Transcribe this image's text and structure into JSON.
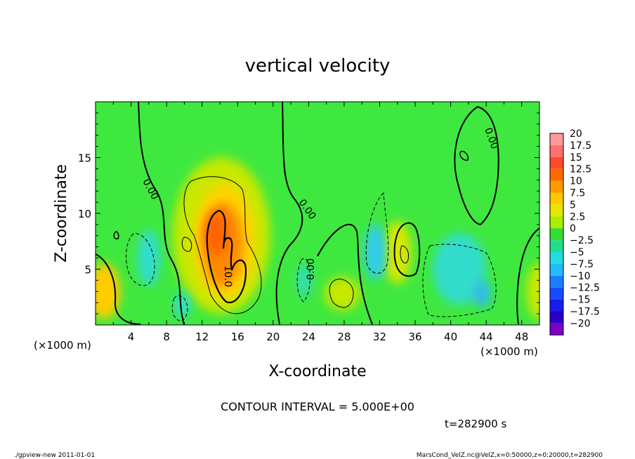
{
  "chart_data": {
    "type": "heatmap",
    "title": "vertical velocity",
    "xlabel": "X-coordinate",
    "ylabel": "Z-coordinate",
    "x_unit": "(×1000 m)",
    "z_unit": "(×1000 m)",
    "xlim": [
      0,
      50
    ],
    "ylim": [
      0,
      20
    ],
    "x_ticks": [
      "4",
      "8",
      "12",
      "16",
      "20",
      "24",
      "28",
      "32",
      "36",
      "40",
      "44",
      "48"
    ],
    "y_ticks": [
      "5",
      "10",
      "15"
    ],
    "contour_labels": [
      "0.00",
      "0.00",
      "0.00",
      "10.0",
      "0.00"
    ],
    "colorbar": {
      "labels": [
        "20",
        "17.5",
        "15",
        "12.5",
        "10",
        "7.5",
        "5",
        "2.5",
        "0",
        "-2.5",
        "-5",
        "-7.5",
        "-10",
        "-12.5",
        "-15",
        "-17.5",
        "-20"
      ],
      "colors": [
        "#ff9a9a",
        "#ff7070",
        "#ff4a2a",
        "#ff6a00",
        "#ff9a00",
        "#ffc800",
        "#e6e600",
        "#aaee00",
        "#33dd33",
        "#22dd88",
        "#22dddd",
        "#22bbff",
        "#1a7fff",
        "#1a4aff",
        "#1a1aee",
        "#2a00c8",
        "#7a00c8"
      ]
    },
    "blobs": [
      {
        "x": 14.2,
        "z": 8.0,
        "rx": 5.5,
        "rz": 7.0,
        "value": 6,
        "fill": "#c8e800"
      },
      {
        "x": 14.5,
        "z": 7.5,
        "rx": 3.5,
        "rz": 5.2,
        "value": 9,
        "fill": "#ffd400"
      },
      {
        "x": 14.3,
        "z": 7.2,
        "rx": 2.3,
        "rz": 3.8,
        "value": 12,
        "fill": "#ff8a00"
      },
      {
        "x": 13.6,
        "z": 8.2,
        "rx": 1.3,
        "rz": 2.0,
        "value": 14,
        "fill": "#ff6400"
      },
      {
        "x": 1.0,
        "z": 3.0,
        "rx": 1.8,
        "rz": 2.5,
        "value": 7,
        "fill": "#ffcc00"
      },
      {
        "x": 34.0,
        "z": 6.5,
        "rx": 1.6,
        "rz": 2.8,
        "value": 6,
        "fill": "#d8e800"
      },
      {
        "x": 27.8,
        "z": 2.8,
        "rx": 2.0,
        "rz": 1.5,
        "value": 4,
        "fill": "#c8e800"
      },
      {
        "x": 50.0,
        "z": 3.0,
        "rx": 1.5,
        "rz": 2.5,
        "value": 4,
        "fill": "#c8e800"
      },
      {
        "x": 31.5,
        "z": 6.5,
        "rx": 1.2,
        "rz": 2.5,
        "value": -6,
        "fill": "#33ccee"
      },
      {
        "x": 6.0,
        "z": 6.0,
        "rx": 1.3,
        "rz": 2.5,
        "value": -4,
        "fill": "#33ddcc"
      },
      {
        "x": 41.0,
        "z": 5.0,
        "rx": 3.0,
        "rz": 3.2,
        "value": -4,
        "fill": "#33ddcc"
      },
      {
        "x": 43.5,
        "z": 2.8,
        "rx": 1.0,
        "rz": 1.2,
        "value": -6,
        "fill": "#33bbee"
      },
      {
        "x": 9.8,
        "z": 1.8,
        "rx": 0.9,
        "rz": 1.2,
        "value": -4,
        "fill": "#33ddcc"
      },
      {
        "x": 23.5,
        "z": 4.0,
        "rx": 0.8,
        "rz": 1.5,
        "value": -3,
        "fill": "#33ddbb"
      }
    ]
  },
  "labels": {
    "contour_interval": "CONTOUR INTERVAL = 5.000E+00",
    "time": "t=282900 s",
    "footer_left": "./gpview-new  2011-01-01",
    "footer_right": "MarsCond_VelZ.nc@VelZ,x=0:50000,z=0:20000,t=282900"
  },
  "colors": {
    "background_field": "#3fe83f",
    "contour_line": "#000000"
  }
}
